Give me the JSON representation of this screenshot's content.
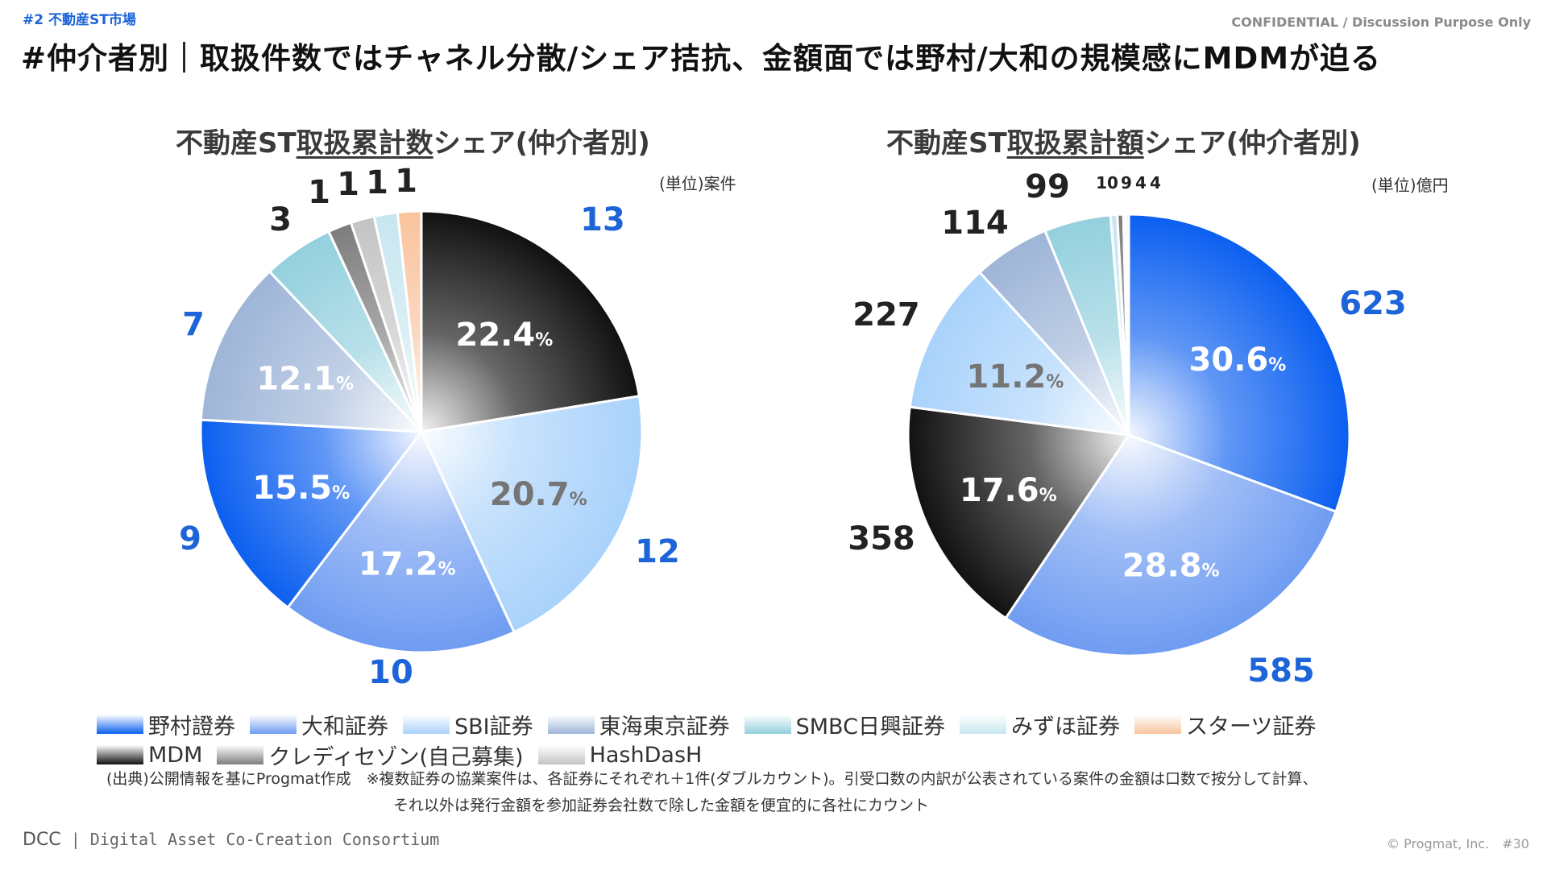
{
  "header": {
    "section_tag": "#2 不動産ST市場",
    "confidential": "CONFIDENTIAL / Discussion Purpose Only",
    "headline": "#仲介者別｜取扱件数ではチャネル分散/シェア拮抗、金額面では野村/大和の規模感にMDMが迫る"
  },
  "colors": {
    "nomura": "#0b5ff0",
    "daiwa": "#6f9cf2",
    "sbi": "#a9d2fb",
    "tokai": "#9eb5d8",
    "smbc": "#93d0de",
    "mizuho": "#c7e6f0",
    "starts": "#f9c39d",
    "mdm": "#111111",
    "credit": "#7d7d7d",
    "hashdash": "#c4c4c4"
  },
  "chart_data": [
    {
      "type": "pie",
      "title_pre": "不動産ST",
      "title_ul": "取扱累計数",
      "title_post": "シェア(仲介者別)",
      "unit": "(単位)案件",
      "slices": [
        {
          "key": "mdm",
          "value": 13,
          "pct": "22.4",
          "label": "13"
        },
        {
          "key": "sbi",
          "value": 12,
          "pct": "20.7",
          "label": "12"
        },
        {
          "key": "daiwa",
          "value": 10,
          "pct": "17.2",
          "label": "10"
        },
        {
          "key": "nomura",
          "value": 9,
          "pct": "15.5",
          "label": "9"
        },
        {
          "key": "tokai",
          "value": 7,
          "pct": "12.1",
          "label": "7"
        },
        {
          "key": "smbc",
          "value": 3,
          "pct": "",
          "label": "3"
        },
        {
          "key": "credit",
          "value": 1,
          "pct": "",
          "label": "1"
        },
        {
          "key": "hashdash",
          "value": 1,
          "pct": "",
          "label": "1"
        },
        {
          "key": "mizuho",
          "value": 1,
          "pct": "",
          "label": "1"
        },
        {
          "key": "starts",
          "value": 1,
          "pct": "",
          "label": "1"
        }
      ]
    },
    {
      "type": "pie",
      "title_pre": "不動産ST",
      "title_ul": "取扱累計額",
      "title_post": "シェア(仲介者別)",
      "unit": "(単位)億円",
      "slices": [
        {
          "key": "nomura",
          "value": 623,
          "pct": "30.6",
          "label": "623"
        },
        {
          "key": "daiwa",
          "value": 585,
          "pct": "28.8",
          "label": "585"
        },
        {
          "key": "mdm",
          "value": 358,
          "pct": "17.6",
          "label": "358"
        },
        {
          "key": "sbi",
          "value": 227,
          "pct": "11.2",
          "label": "227"
        },
        {
          "key": "tokai",
          "value": 114,
          "pct": "",
          "label": "114"
        },
        {
          "key": "smbc",
          "value": 99,
          "pct": "",
          "label": "99"
        },
        {
          "key": "mizuho",
          "value": 10,
          "pct": "",
          "label": "10"
        },
        {
          "key": "credit",
          "value": 9,
          "pct": "",
          "label": "9"
        },
        {
          "key": "hashdash",
          "value": 4,
          "pct": "",
          "label": "4"
        },
        {
          "key": "starts",
          "value": 4,
          "pct": "",
          "label": "4"
        }
      ]
    }
  ],
  "pct_suffix": "%",
  "legend": {
    "row1": [
      {
        "key": "nomura",
        "label": "野村證券"
      },
      {
        "key": "daiwa",
        "label": "大和証券"
      },
      {
        "key": "sbi",
        "label": "SBI証券"
      },
      {
        "key": "tokai",
        "label": "東海東京証券"
      },
      {
        "key": "smbc",
        "label": "SMBC日興証券"
      },
      {
        "key": "mizuho",
        "label": "みずほ証券"
      },
      {
        "key": "starts",
        "label": "スターツ証券"
      }
    ],
    "row2": [
      {
        "key": "mdm",
        "label": "MDM"
      },
      {
        "key": "credit",
        "label": "クレディセゾン(自己募集)"
      },
      {
        "key": "hashdash",
        "label": "HashDasH"
      }
    ]
  },
  "notes": {
    "line1": "(出典)公開情報を基にProgmat作成　※複数証券の協業案件は、各証券にそれぞれ＋1件(ダブルカウント)。引受口数の内訳が公表されている案件の金額は口数で按分して計算、",
    "line2": "それ以外は発行金額を参加証券会社数で除した金額を便宜的に各社にカウント"
  },
  "footer": {
    "logo_mark": "DCC",
    "logo_text": "Digital Asset Co-Creation Consortium",
    "copyright": "© Progmat, Inc.　#30"
  }
}
